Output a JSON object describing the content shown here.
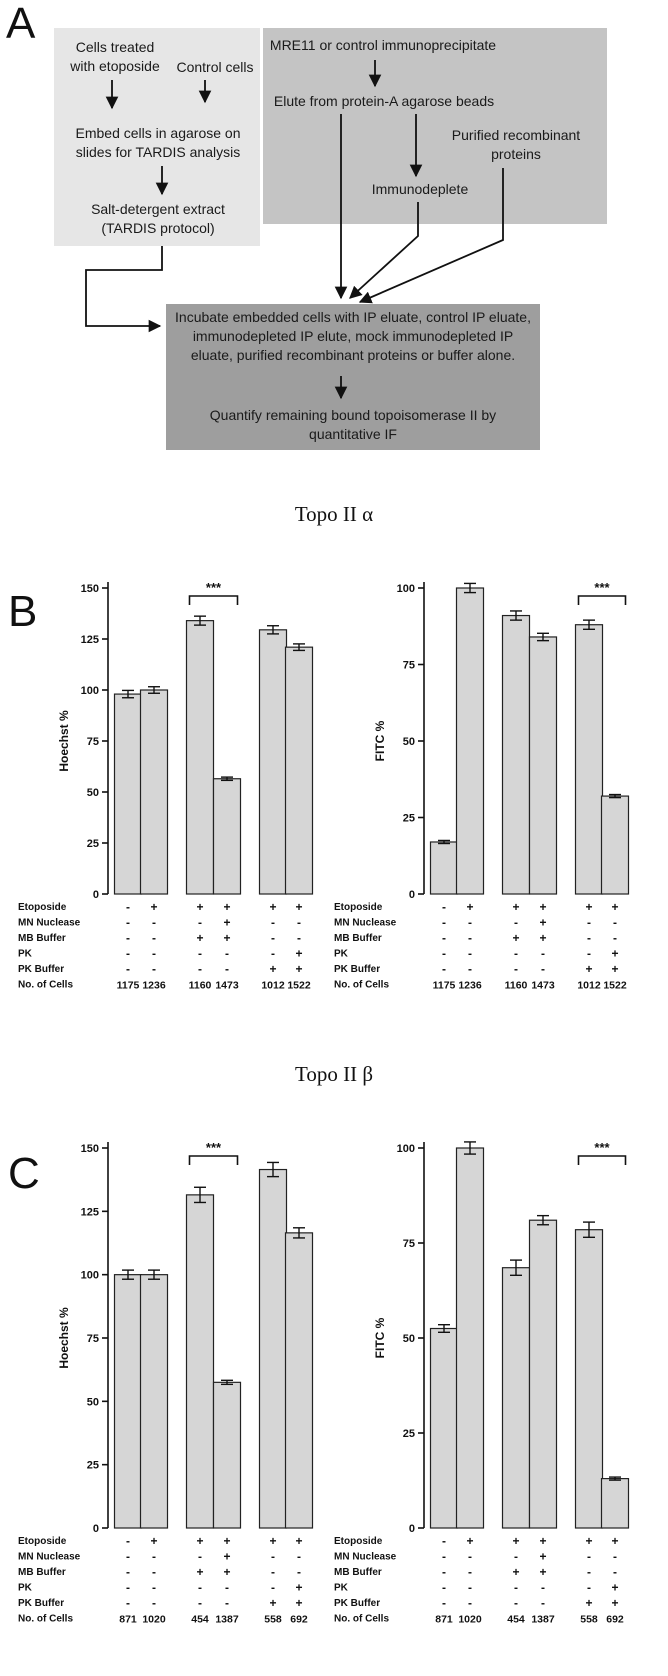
{
  "panel_a": {
    "letter": "A",
    "left_box": {
      "cells_treated": [
        "Cells treated",
        "with etoposide"
      ],
      "control_cells": "Control cells",
      "embed": [
        "Embed cells in agarose on",
        "slides for TARDIS analysis"
      ],
      "extract": [
        "Salt-detergent extract",
        "(TARDIS protocol)"
      ]
    },
    "right_box": {
      "ip": "MRE11 or control immunoprecipitate",
      "elute": "Elute from protein-A agarose beads",
      "purified": [
        "Purified recombinant",
        "proteins"
      ],
      "immunodeplete": "Immunodeplete"
    },
    "bottom_box": {
      "incubate": [
        "Incubate embedded cells with IP eluate, control IP eluate,",
        "immunodepleted IP elute, mock immunodepleted IP",
        "eluate, purified recombinant proteins or buffer alone."
      ],
      "quantify": [
        "Quantify remaining bound topoisomerase II by",
        "quantitative IF"
      ]
    }
  },
  "panel_b": {
    "letter": "B",
    "title": "Topo II α"
  },
  "panel_c": {
    "letter": "C",
    "title": "Topo II β"
  },
  "chart_data": [
    {
      "id": "b-left",
      "type": "bar",
      "ylabel": "Hoechst %",
      "ylim": [
        0,
        150
      ],
      "yticks": [
        "0",
        "25",
        "50",
        "75",
        "100",
        "125",
        "150"
      ],
      "values": [
        98,
        100,
        134,
        56.5,
        129.5,
        121
      ],
      "errors": [
        1.8,
        1.6,
        2.2,
        0.8,
        2.0,
        1.6
      ],
      "significance": {
        "label": "***",
        "from": 2,
        "to": 3
      },
      "conditions": [
        "Etoposide",
        "MN Nuclease",
        "MB Buffer",
        "PK",
        "PK Buffer",
        "No. of Cells"
      ],
      "signs": [
        [
          "-",
          "+",
          "+",
          "+",
          "+",
          "+"
        ],
        [
          "-",
          "-",
          "-",
          "+",
          "-",
          "-"
        ],
        [
          "-",
          "-",
          "+",
          "+",
          "-",
          "-"
        ],
        [
          "-",
          "-",
          "-",
          "-",
          "-",
          "+"
        ],
        [
          "-",
          "-",
          "-",
          "-",
          "+",
          "+"
        ]
      ],
      "cells": [
        "1175",
        "1236",
        "1160",
        "1473",
        "1012",
        "1522"
      ]
    },
    {
      "id": "b-right",
      "type": "bar",
      "ylabel": "FITC %",
      "ylim": [
        0,
        100
      ],
      "yticks": [
        "0",
        "25",
        "50",
        "75",
        "100"
      ],
      "values": [
        17,
        100,
        91,
        84,
        88,
        32
      ],
      "errors": [
        0.5,
        1.5,
        1.5,
        1.2,
        1.5,
        0.5
      ],
      "significance": {
        "label": "***",
        "from": 4,
        "to": 5
      },
      "conditions": [
        "Etoposide",
        "MN Nuclease",
        "MB Buffer",
        "PK",
        "PK Buffer",
        "No. of Cells"
      ],
      "signs": [
        [
          "-",
          "+",
          "+",
          "+",
          "+",
          "+"
        ],
        [
          "-",
          "-",
          "-",
          "+",
          "-",
          "-"
        ],
        [
          "-",
          "-",
          "+",
          "+",
          "-",
          "-"
        ],
        [
          "-",
          "-",
          "-",
          "-",
          "-",
          "+"
        ],
        [
          "-",
          "-",
          "-",
          "-",
          "+",
          "+"
        ]
      ],
      "cells": [
        "1175",
        "1236",
        "1160",
        "1473",
        "1012",
        "1522"
      ]
    },
    {
      "id": "c-left",
      "type": "bar",
      "ylabel": "Hoechst %",
      "ylim": [
        0,
        150
      ],
      "yticks": [
        "0",
        "25",
        "50",
        "75",
        "100",
        "125",
        "150"
      ],
      "values": [
        100,
        100,
        131.5,
        57.5,
        141.5,
        116.5
      ],
      "errors": [
        1.8,
        1.8,
        3.0,
        0.8,
        2.8,
        2.0
      ],
      "significance": {
        "label": "***",
        "from": 2,
        "to": 3
      },
      "conditions": [
        "Etoposide",
        "MN Nuclease",
        "MB Buffer",
        "PK",
        "PK Buffer",
        "No. of Cells"
      ],
      "signs": [
        [
          "-",
          "+",
          "+",
          "+",
          "+",
          "+"
        ],
        [
          "-",
          "-",
          "-",
          "+",
          "-",
          "-"
        ],
        [
          "-",
          "-",
          "+",
          "+",
          "-",
          "-"
        ],
        [
          "-",
          "-",
          "-",
          "-",
          "-",
          "+"
        ],
        [
          "-",
          "-",
          "-",
          "-",
          "+",
          "+"
        ]
      ],
      "cells": [
        "871",
        "1020",
        "454",
        "1387",
        "558",
        "692"
      ]
    },
    {
      "id": "c-right",
      "type": "bar",
      "ylabel": "FITC %",
      "ylim": [
        0,
        100
      ],
      "yticks": [
        "0",
        "25",
        "50",
        "75",
        "100"
      ],
      "values": [
        52.5,
        100,
        68.5,
        81,
        78.5,
        13
      ],
      "errors": [
        1.0,
        1.6,
        2.0,
        1.2,
        2.0,
        0.4
      ],
      "significance": {
        "label": "***",
        "from": 4,
        "to": 5
      },
      "conditions": [
        "Etoposide",
        "MN Nuclease",
        "MB Buffer",
        "PK",
        "PK Buffer",
        "No. of Cells"
      ],
      "signs": [
        [
          "-",
          "+",
          "+",
          "+",
          "+",
          "+"
        ],
        [
          "-",
          "-",
          "-",
          "+",
          "-",
          "-"
        ],
        [
          "-",
          "-",
          "+",
          "+",
          "-",
          "-"
        ],
        [
          "-",
          "-",
          "-",
          "-",
          "-",
          "+"
        ],
        [
          "-",
          "-",
          "-",
          "-",
          "+",
          "+"
        ]
      ],
      "cells": [
        "871",
        "1020",
        "454",
        "1387",
        "558",
        "692"
      ]
    }
  ]
}
